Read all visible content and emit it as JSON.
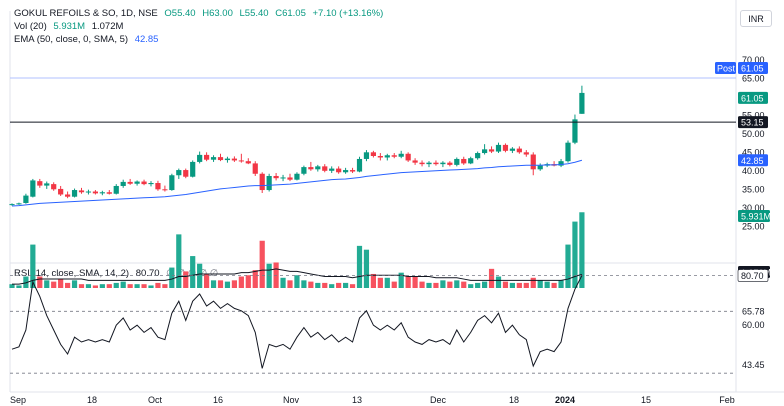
{
  "header": {
    "symbol": "GOKUL REFOILS & SO, 1D, NSE",
    "open": "O55.40",
    "high": "H63.00",
    "low": "L55.40",
    "close": "C61.05",
    "change": "+7.10 (+13.16%)",
    "vol_label": "Vol (20)",
    "vol_value": "5.931M",
    "vol_ma": "1.072M",
    "ema_label": "EMA (50, close, 0, SMA, 5)",
    "ema_value": "42.85",
    "rsi_label": "RSI (14, close, SMA, 14, 2)",
    "rsi_value": "80.70",
    "rsi_extra": "∅ ∅ ∅ ∅ ∅",
    "currency": "INR"
  },
  "colors": {
    "up": "#089981",
    "down": "#f23645",
    "ema": "#2962ff",
    "vol_up": "#22ab94",
    "vol_down": "#f7525f",
    "rsi": "#131722"
  },
  "tags": {
    "post_label": "Post",
    "post_value": "61.05",
    "last_price": "61.05",
    "hline": "53.15",
    "ema": "42.85",
    "volume": "5.931M",
    "vol_ma": "1.072M",
    "rsi": "80.70"
  },
  "chart_data": {
    "type": "candlestick",
    "price_axis": {
      "ticks": [
        "70.00",
        "65.00",
        "60.00",
        "55.00",
        "50.00",
        "45.00",
        "40.00",
        "35.00",
        "30.00",
        "25.00"
      ],
      "range": [
        24,
        74
      ]
    },
    "volume_axis": {
      "range": [
        0,
        6.5
      ]
    },
    "rsi_axis": {
      "ticks": [
        "65.78",
        "60.00",
        "43.45"
      ],
      "range": [
        38,
        83
      ]
    },
    "x_axis": {
      "labels": [
        "Sep",
        "18",
        "Oct",
        "16",
        "Nov",
        "13",
        "Dec",
        "18",
        "2024",
        "15",
        "Feb"
      ]
    },
    "horizontal_line": 53.15,
    "rsi_dashed_levels": [
      80.7,
      65.78,
      40.0
    ],
    "candles": [
      {
        "o": 30.8,
        "h": 31.2,
        "l": 30.6,
        "c": 31.0
      },
      {
        "o": 31.0,
        "h": 31.4,
        "l": 30.8,
        "c": 31.2
      },
      {
        "o": 31.3,
        "h": 33.8,
        "l": 31.1,
        "c": 33.3
      },
      {
        "o": 33.0,
        "h": 37.8,
        "l": 32.8,
        "c": 37.4
      },
      {
        "o": 37.2,
        "h": 37.8,
        "l": 35.4,
        "c": 36.0
      },
      {
        "o": 36.0,
        "h": 37.1,
        "l": 35.1,
        "c": 36.6
      },
      {
        "o": 36.4,
        "h": 36.9,
        "l": 34.6,
        "c": 35.0
      },
      {
        "o": 35.1,
        "h": 35.9,
        "l": 33.2,
        "c": 33.6
      },
      {
        "o": 33.6,
        "h": 34.4,
        "l": 32.6,
        "c": 33.0
      },
      {
        "o": 33.0,
        "h": 35.2,
        "l": 32.8,
        "c": 34.8
      },
      {
        "o": 34.7,
        "h": 35.4,
        "l": 33.8,
        "c": 34.2
      },
      {
        "o": 34.2,
        "h": 34.9,
        "l": 33.6,
        "c": 34.4
      },
      {
        "o": 34.4,
        "h": 34.8,
        "l": 33.6,
        "c": 33.9
      },
      {
        "o": 33.9,
        "h": 34.6,
        "l": 33.4,
        "c": 34.2
      },
      {
        "o": 34.2,
        "h": 34.8,
        "l": 33.6,
        "c": 33.8
      },
      {
        "o": 33.8,
        "h": 36.4,
        "l": 33.6,
        "c": 35.9
      },
      {
        "o": 35.9,
        "h": 37.6,
        "l": 35.4,
        "c": 37.0
      },
      {
        "o": 37.0,
        "h": 37.8,
        "l": 36.2,
        "c": 36.5
      },
      {
        "o": 36.5,
        "h": 37.4,
        "l": 36.0,
        "c": 37.1
      },
      {
        "o": 37.1,
        "h": 37.6,
        "l": 36.1,
        "c": 36.4
      },
      {
        "o": 36.4,
        "h": 37.2,
        "l": 35.8,
        "c": 36.7
      },
      {
        "o": 36.7,
        "h": 37.3,
        "l": 34.6,
        "c": 35.0
      },
      {
        "o": 35.0,
        "h": 36.0,
        "l": 34.4,
        "c": 34.8
      },
      {
        "o": 34.8,
        "h": 39.2,
        "l": 34.6,
        "c": 38.8
      },
      {
        "o": 38.8,
        "h": 40.6,
        "l": 37.8,
        "c": 40.2
      },
      {
        "o": 40.2,
        "h": 40.6,
        "l": 38.0,
        "c": 38.4
      },
      {
        "o": 38.4,
        "h": 42.8,
        "l": 38.2,
        "c": 42.4
      },
      {
        "o": 42.4,
        "h": 45.2,
        "l": 42.0,
        "c": 44.3
      },
      {
        "o": 44.3,
        "h": 45.0,
        "l": 42.6,
        "c": 43.0
      },
      {
        "o": 43.0,
        "h": 44.2,
        "l": 42.4,
        "c": 43.7
      },
      {
        "o": 43.7,
        "h": 44.6,
        "l": 42.6,
        "c": 42.9
      },
      {
        "o": 42.9,
        "h": 43.8,
        "l": 42.2,
        "c": 43.3
      },
      {
        "o": 43.3,
        "h": 43.9,
        "l": 42.4,
        "c": 42.8
      },
      {
        "o": 42.8,
        "h": 44.6,
        "l": 42.2,
        "c": 42.6
      },
      {
        "o": 42.6,
        "h": 43.4,
        "l": 41.8,
        "c": 42.0
      },
      {
        "o": 42.0,
        "h": 42.6,
        "l": 38.6,
        "c": 39.2
      },
      {
        "o": 39.2,
        "h": 39.6,
        "l": 34.0,
        "c": 34.8
      },
      {
        "o": 34.8,
        "h": 39.2,
        "l": 34.4,
        "c": 38.6
      },
      {
        "o": 38.6,
        "h": 39.4,
        "l": 37.4,
        "c": 38.0
      },
      {
        "o": 38.0,
        "h": 38.9,
        "l": 37.2,
        "c": 38.2
      },
      {
        "o": 38.2,
        "h": 39.2,
        "l": 37.2,
        "c": 37.6
      },
      {
        "o": 37.6,
        "h": 39.6,
        "l": 37.4,
        "c": 39.2
      },
      {
        "o": 39.2,
        "h": 41.4,
        "l": 38.8,
        "c": 41.0
      },
      {
        "o": 41.0,
        "h": 42.4,
        "l": 40.0,
        "c": 40.4
      },
      {
        "o": 40.4,
        "h": 41.6,
        "l": 39.8,
        "c": 41.2
      },
      {
        "o": 41.2,
        "h": 41.8,
        "l": 39.6,
        "c": 40.0
      },
      {
        "o": 40.0,
        "h": 41.2,
        "l": 39.4,
        "c": 40.6
      },
      {
        "o": 40.6,
        "h": 41.2,
        "l": 39.2,
        "c": 39.6
      },
      {
        "o": 39.6,
        "h": 40.8,
        "l": 39.2,
        "c": 40.2
      },
      {
        "o": 40.2,
        "h": 40.8,
        "l": 39.4,
        "c": 39.8
      },
      {
        "o": 39.8,
        "h": 43.8,
        "l": 39.6,
        "c": 43.2
      },
      {
        "o": 43.2,
        "h": 45.6,
        "l": 42.6,
        "c": 45.0
      },
      {
        "o": 45.0,
        "h": 45.4,
        "l": 43.6,
        "c": 44.0
      },
      {
        "o": 44.0,
        "h": 44.8,
        "l": 42.8,
        "c": 43.6
      },
      {
        "o": 43.6,
        "h": 44.6,
        "l": 42.8,
        "c": 44.2
      },
      {
        "o": 44.2,
        "h": 44.8,
        "l": 43.4,
        "c": 43.8
      },
      {
        "o": 43.8,
        "h": 45.4,
        "l": 43.4,
        "c": 44.6
      },
      {
        "o": 44.6,
        "h": 45.0,
        "l": 42.4,
        "c": 42.8
      },
      {
        "o": 42.8,
        "h": 43.4,
        "l": 41.6,
        "c": 42.2
      },
      {
        "o": 42.2,
        "h": 42.8,
        "l": 41.2,
        "c": 41.8
      },
      {
        "o": 41.8,
        "h": 42.6,
        "l": 41.0,
        "c": 42.2
      },
      {
        "o": 42.2,
        "h": 42.8,
        "l": 41.4,
        "c": 41.8
      },
      {
        "o": 41.8,
        "h": 42.6,
        "l": 41.0,
        "c": 42.2
      },
      {
        "o": 42.2,
        "h": 42.6,
        "l": 41.2,
        "c": 41.6
      },
      {
        "o": 41.6,
        "h": 43.6,
        "l": 41.2,
        "c": 43.2
      },
      {
        "o": 43.2,
        "h": 43.8,
        "l": 41.6,
        "c": 42.0
      },
      {
        "o": 42.0,
        "h": 43.8,
        "l": 41.8,
        "c": 43.4
      },
      {
        "o": 43.4,
        "h": 45.2,
        "l": 43.0,
        "c": 44.8
      },
      {
        "o": 44.8,
        "h": 47.2,
        "l": 44.4,
        "c": 45.8
      },
      {
        "o": 45.8,
        "h": 46.6,
        "l": 44.8,
        "c": 45.2
      },
      {
        "o": 45.2,
        "h": 47.6,
        "l": 44.8,
        "c": 47.0
      },
      {
        "o": 47.0,
        "h": 47.4,
        "l": 45.0,
        "c": 45.4
      },
      {
        "o": 45.4,
        "h": 46.4,
        "l": 44.8,
        "c": 46.0
      },
      {
        "o": 46.0,
        "h": 46.6,
        "l": 44.6,
        "c": 45.0
      },
      {
        "o": 45.0,
        "h": 45.6,
        "l": 43.8,
        "c": 44.4
      },
      {
        "o": 44.4,
        "h": 45.0,
        "l": 38.8,
        "c": 40.4
      },
      {
        "o": 40.4,
        "h": 42.0,
        "l": 40.0,
        "c": 41.4
      },
      {
        "o": 41.4,
        "h": 42.2,
        "l": 41.0,
        "c": 41.8
      },
      {
        "o": 41.8,
        "h": 42.6,
        "l": 41.2,
        "c": 41.4
      },
      {
        "o": 41.4,
        "h": 43.2,
        "l": 41.0,
        "c": 42.6
      },
      {
        "o": 42.6,
        "h": 48.2,
        "l": 42.2,
        "c": 47.6
      },
      {
        "o": 47.6,
        "h": 55.2,
        "l": 47.2,
        "c": 53.9
      },
      {
        "o": 55.4,
        "h": 63.0,
        "l": 55.4,
        "c": 61.05
      }
    ],
    "volume": [
      0.3,
      0.2,
      0.9,
      3.4,
      0.9,
      0.6,
      0.5,
      0.7,
      0.4,
      0.6,
      0.3,
      0.3,
      0.2,
      0.3,
      0.3,
      0.4,
      0.5,
      0.3,
      0.3,
      0.3,
      0.2,
      0.4,
      0.3,
      1.6,
      4.2,
      1.3,
      2.5,
      1.9,
      1.1,
      0.6,
      0.6,
      0.5,
      0.6,
      0.9,
      1.0,
      1.4,
      3.7,
      1.9,
      2.0,
      0.8,
      0.6,
      1.0,
      0.6,
      0.5,
      0.4,
      0.4,
      0.3,
      0.4,
      0.4,
      0.3,
      3.3,
      3.0,
      1.1,
      0.8,
      0.8,
      0.5,
      1.2,
      0.9,
      0.9,
      0.5,
      0.4,
      0.4,
      0.6,
      0.5,
      0.6,
      0.5,
      0.3,
      0.4,
      0.5,
      1.5,
      0.9,
      0.5,
      0.4,
      0.4,
      0.4,
      0.8,
      0.6,
      0.5,
      0.4,
      0.6,
      3.4,
      5.2,
      5.931
    ],
    "vol_ma": [
      0.3,
      0.3,
      0.4,
      0.6,
      0.7,
      0.7,
      0.7,
      0.7,
      0.7,
      0.7,
      0.7,
      0.6,
      0.6,
      0.6,
      0.6,
      0.6,
      0.6,
      0.6,
      0.6,
      0.6,
      0.6,
      0.6,
      0.6,
      0.7,
      0.9,
      0.9,
      1.0,
      1.1,
      1.1,
      1.1,
      1.1,
      1.1,
      1.1,
      1.2,
      1.2,
      1.3,
      1.4,
      1.4,
      1.5,
      1.4,
      1.3,
      1.3,
      1.2,
      1.1,
      1.0,
      0.9,
      0.9,
      0.9,
      0.9,
      0.8,
      0.9,
      1.0,
      1.0,
      1.0,
      1.0,
      1.0,
      1.0,
      0.9,
      0.9,
      0.9,
      0.9,
      0.8,
      0.8,
      0.8,
      0.8,
      0.7,
      0.6,
      0.6,
      0.6,
      0.6,
      0.6,
      0.6,
      0.6,
      0.6,
      0.6,
      0.6,
      0.6,
      0.6,
      0.6,
      0.6,
      0.7,
      0.9,
      1.072
    ],
    "ema": [
      30.5,
      30.6,
      30.8,
      31.0,
      31.2,
      31.3,
      31.4,
      31.5,
      31.6,
      31.7,
      31.8,
      31.9,
      32.0,
      32.1,
      32.2,
      32.3,
      32.4,
      32.5,
      32.6,
      32.7,
      32.8,
      32.9,
      33.0,
      33.2,
      33.4,
      33.6,
      33.9,
      34.2,
      34.5,
      34.8,
      35.1,
      35.3,
      35.5,
      35.7,
      35.9,
      36.0,
      36.0,
      36.1,
      36.2,
      36.3,
      36.4,
      36.6,
      36.8,
      37.0,
      37.2,
      37.4,
      37.6,
      37.7,
      37.8,
      38.0,
      38.2,
      38.5,
      38.7,
      38.9,
      39.1,
      39.3,
      39.5,
      39.6,
      39.7,
      39.8,
      39.9,
      40.0,
      40.1,
      40.2,
      40.3,
      40.4,
      40.5,
      40.6,
      40.8,
      40.9,
      41.1,
      41.2,
      41.3,
      41.4,
      41.5,
      41.5,
      41.5,
      41.6,
      41.6,
      41.7,
      41.9,
      42.3,
      42.85
    ],
    "rsi": [
      50,
      51,
      58,
      78,
      72,
      64,
      58,
      52,
      48,
      55,
      53,
      54,
      53,
      54,
      53,
      60,
      63,
      58,
      60,
      57,
      59,
      55,
      54,
      65,
      70,
      62,
      70,
      73,
      68,
      70,
      67,
      69,
      67,
      66,
      64,
      57,
      42,
      52,
      51,
      52,
      50,
      55,
      59,
      55,
      57,
      54,
      56,
      53,
      55,
      53,
      63,
      66,
      60,
      58,
      60,
      58,
      61,
      55,
      53,
      52,
      54,
      53,
      54,
      52,
      58,
      53,
      57,
      62,
      64,
      61,
      65,
      57,
      60,
      56,
      54,
      43,
      49,
      50,
      49,
      53,
      67,
      75,
      80.7
    ]
  }
}
